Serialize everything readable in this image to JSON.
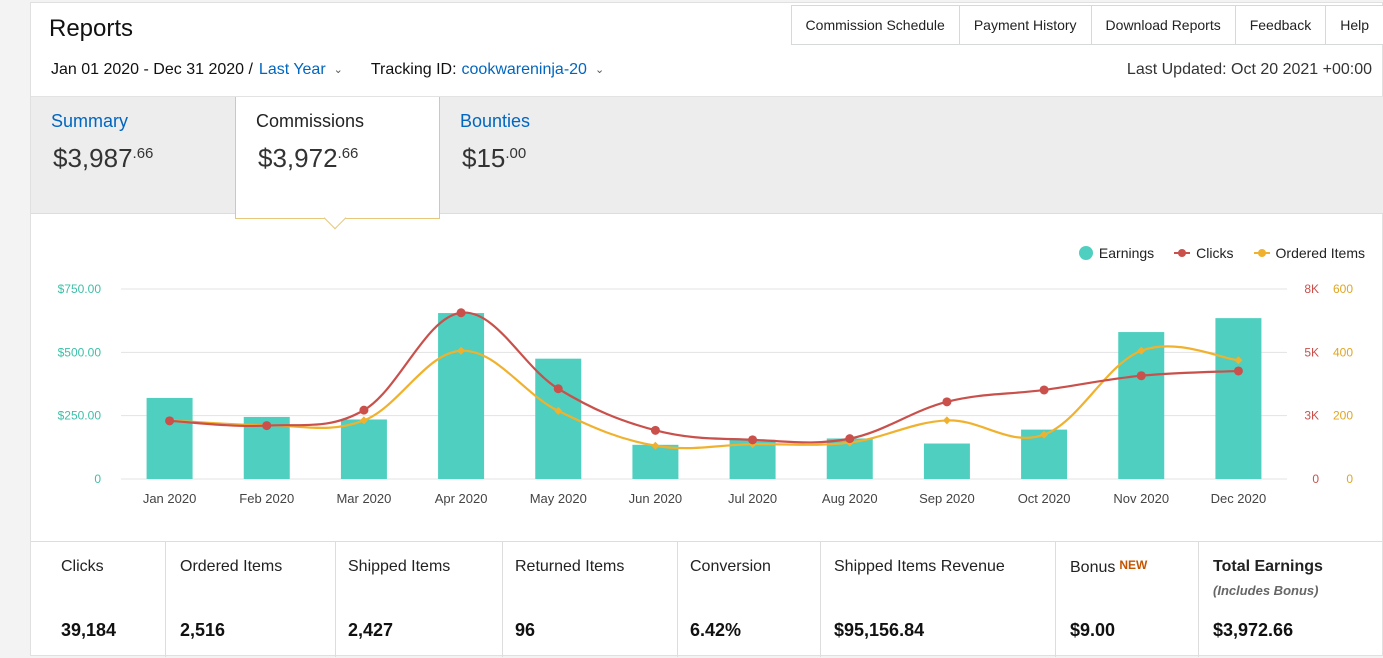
{
  "header": {
    "title": "Reports",
    "nav": [
      "Commission Schedule",
      "Payment History",
      "Download Reports",
      "Feedback",
      "Help"
    ],
    "date_range": "Jan 01 2020 - Dec 31 2020 /",
    "period_link": "Last Year",
    "tracking_label": "Tracking ID:",
    "tracking_id": "cookwareninja-20",
    "last_updated": "Last Updated: Oct 20 2021 +00:00"
  },
  "tabs": {
    "summary": {
      "label": "Summary",
      "dollars": "$3,987",
      "cents": ".66"
    },
    "commissions": {
      "label": "Commissions",
      "dollars": "$3,972",
      "cents": ".66"
    },
    "bounties": {
      "label": "Bounties",
      "dollars": "$15",
      "cents": ".00"
    }
  },
  "chart_data": {
    "type": "bar",
    "categories": [
      "Jan 2020",
      "Feb 2020",
      "Mar 2020",
      "Apr 2020",
      "May 2020",
      "Jun 2020",
      "Jul 2020",
      "Aug 2020",
      "Sep 2020",
      "Oct 2020",
      "Nov 2020",
      "Dec 2020"
    ],
    "series": [
      {
        "name": "Earnings",
        "type": "bar",
        "axis": "left",
        "color": "#4ecfbf",
        "values": [
          320,
          245,
          235,
          655,
          475,
          135,
          155,
          160,
          140,
          195,
          580,
          635
        ]
      },
      {
        "name": "Clicks",
        "type": "line",
        "axis": "right1",
        "color": "#c9504b",
        "values": [
          2450,
          2250,
          2900,
          7000,
          3800,
          2050,
          1650,
          1700,
          3250,
          3750,
          4350,
          4550
        ]
      },
      {
        "name": "Ordered Items",
        "type": "line",
        "axis": "right2",
        "color": "#f0b22e",
        "values": [
          185,
          170,
          185,
          405,
          215,
          105,
          110,
          115,
          185,
          140,
          405,
          375
        ]
      }
    ],
    "left_axis": {
      "ticks": [
        "0",
        "$250.00",
        "$500.00",
        "$750.00"
      ],
      "max": 750,
      "color": "#3dbfa9"
    },
    "right_axis_1": {
      "ticks": [
        "0",
        "3K",
        "5K",
        "8K"
      ],
      "tick_values": [
        0,
        2667,
        5333,
        8000
      ],
      "max": 8000,
      "color": "#c9504b"
    },
    "right_axis_2": {
      "ticks": [
        "0",
        "200",
        "400",
        "600"
      ],
      "max": 600,
      "color": "#e0a522"
    },
    "legend": [
      "Earnings",
      "Clicks",
      "Ordered Items"
    ],
    "legend_position": "top-right",
    "grid": true
  },
  "metrics": [
    {
      "label": "Clicks",
      "value": "39,184"
    },
    {
      "label": "Ordered Items",
      "value": "2,516"
    },
    {
      "label": "Shipped Items",
      "value": "2,427"
    },
    {
      "label": "Returned Items",
      "value": "96"
    },
    {
      "label": "Conversion",
      "value": "6.42%"
    },
    {
      "label": "Shipped Items Revenue",
      "value": "$95,156.84"
    },
    {
      "label": "Bonus",
      "badge": "NEW",
      "value": "$9.00"
    },
    {
      "label": "Total Earnings",
      "sub": "(Includes Bonus)",
      "value": "$3,972.66"
    }
  ]
}
